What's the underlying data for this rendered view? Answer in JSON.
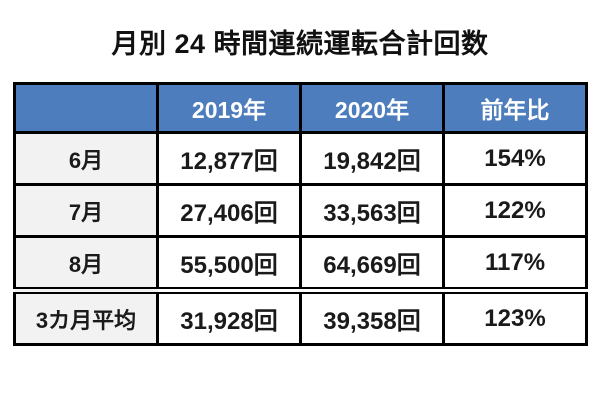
{
  "title": "月別 24 時間連続運転合計回数",
  "table": {
    "header": {
      "col0": "",
      "col1": "2019年",
      "col2": "2020年",
      "col3": "前年比"
    },
    "rows": [
      {
        "cells": [
          "6月",
          "12,877回",
          "19,842回",
          "154%"
        ]
      },
      {
        "cells": [
          "7月",
          "27,406回",
          "33,563回",
          "122%"
        ]
      },
      {
        "cells": [
          "8月",
          "55,500回",
          "64,669回",
          "117%"
        ]
      },
      {
        "cells": [
          "3カ月平均",
          "31,928回",
          "39,358回",
          "123%"
        ]
      }
    ]
  },
  "colors": {
    "header_bg": "#4d7dbd",
    "header_text": "#ffffff",
    "row_label_bg": "#f2f2f2",
    "border": "#000000",
    "text": "#1a1a1a",
    "background": "#ffffff"
  },
  "chart_data": {
    "type": "table",
    "title": "月別24時間連続運転合計回数",
    "columns": [
      "",
      "2019年",
      "2020年",
      "前年比"
    ],
    "rows": [
      [
        "6月",
        "12,877回",
        "19,842回",
        "154%"
      ],
      [
        "7月",
        "27,406回",
        "33,563回",
        "122%"
      ],
      [
        "8月",
        "55,500回",
        "64,669回",
        "117%"
      ],
      [
        "3カ月平均",
        "31,928回",
        "39,358回",
        "123%"
      ]
    ],
    "categories": [
      "6月",
      "7月",
      "8月",
      "3カ月平均"
    ],
    "series": [
      {
        "name": "2019年",
        "values": [
          12877,
          27406,
          55500,
          31928
        ],
        "unit": "回"
      },
      {
        "name": "2020年",
        "values": [
          19842,
          33563,
          64669,
          39358
        ],
        "unit": "回"
      },
      {
        "name": "前年比",
        "values": [
          154,
          122,
          117,
          123
        ],
        "unit": "%"
      }
    ],
    "notes": "最終行は3カ月平均。平均行の上は二重罫線で区切られている。"
  }
}
